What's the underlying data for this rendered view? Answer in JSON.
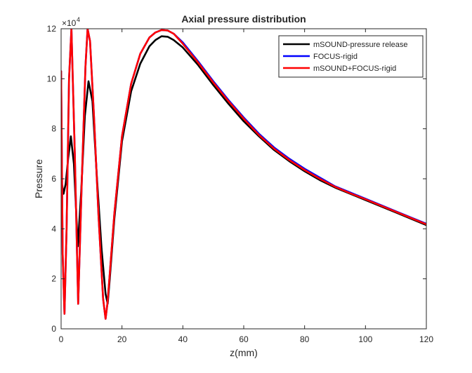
{
  "chart_data": {
    "type": "line",
    "title": "Axial pressure distribution",
    "xlabel": "z(mm)",
    "ylabel": "Pressure",
    "y_exponent_label": "×10",
    "y_exponent_power": "4",
    "xlim": [
      0,
      120
    ],
    "ylim": [
      0,
      120000
    ],
    "x_ticks": [
      0,
      20,
      40,
      60,
      80,
      100,
      120
    ],
    "x_tick_labels": [
      "0",
      "20",
      "40",
      "60",
      "80",
      "100",
      "120"
    ],
    "y_ticks": [
      0,
      20000,
      40000,
      60000,
      80000,
      100000,
      120000
    ],
    "y_tick_labels": [
      "0",
      "2",
      "4",
      "6",
      "8",
      "10",
      "12"
    ],
    "grid": false,
    "legend_position": "top-right",
    "series": [
      {
        "name": "mSOUND-pressure release",
        "color": "#000000",
        "x": [
          0,
          0.8,
          1.5,
          2.3,
          3.2,
          4.2,
          5.5,
          6.6,
          7.8,
          9.0,
          10.3,
          11.8,
          13.3,
          14.6,
          15.3,
          16.0,
          17.5,
          20,
          23,
          26,
          29,
          31,
          33,
          35,
          37,
          40,
          45,
          50,
          55,
          60,
          65,
          70,
          75,
          80,
          85,
          90,
          95,
          100,
          105,
          110,
          115,
          120
        ],
        "y": [
          60000,
          54000,
          58000,
          68000,
          77000,
          66000,
          33000,
          55000,
          85000,
          99000,
          91000,
          60000,
          32000,
          14000,
          10000,
          20000,
          44000,
          75000,
          95000,
          106000,
          113000,
          115500,
          117000,
          116800,
          115500,
          112500,
          105500,
          97500,
          90000,
          83000,
          77000,
          71500,
          67000,
          63000,
          59500,
          56500,
          54000,
          51500,
          49000,
          46500,
          44000,
          41500
        ]
      },
      {
        "name": "FOCUS-rigid",
        "color": "#0000ff",
        "x": [
          0,
          0.5,
          1.1,
          1.8,
          2.6,
          3.4,
          4.5,
          5.6,
          6.7,
          8.0,
          8.7,
          9.5,
          10.8,
          12.3,
          13.8,
          14.6,
          15.2,
          16.0,
          17.5,
          20,
          23,
          26,
          29,
          31,
          33,
          35,
          37,
          40,
          45,
          50,
          55,
          60,
          65,
          70,
          75,
          80,
          85,
          90,
          95,
          100,
          105,
          110,
          115,
          120
        ],
        "y": [
          103000,
          30000,
          6000,
          40000,
          100000,
          120000,
          70000,
          10000,
          55000,
          105000,
          120000,
          115000,
          85000,
          45000,
          12000,
          4000,
          10000,
          22000,
          46000,
          77000,
          98000,
          110000,
          116500,
          118500,
          119500,
          119300,
          118000,
          114500,
          107000,
          99000,
          91500,
          84500,
          78000,
          72500,
          68000,
          64000,
          60500,
          57000,
          54500,
          52000,
          49500,
          47000,
          44500,
          42000
        ]
      },
      {
        "name": "mSOUND+FOCUS-rigid",
        "color": "#ff0000",
        "x": [
          0,
          0.5,
          1.1,
          1.8,
          2.6,
          3.4,
          4.5,
          5.6,
          6.7,
          8.0,
          8.7,
          9.5,
          10.8,
          12.3,
          13.8,
          14.6,
          15.2,
          16.0,
          17.5,
          20,
          23,
          26,
          29,
          31,
          33,
          35,
          37,
          40,
          45,
          50,
          55,
          60,
          65,
          70,
          75,
          80,
          85,
          90,
          95,
          100,
          105,
          110,
          115,
          120
        ],
        "y": [
          103000,
          30000,
          6000,
          40000,
          100000,
          120000,
          70000,
          10000,
          55000,
          105000,
          120000,
          115000,
          85000,
          45000,
          12000,
          4000,
          10000,
          22000,
          46000,
          77000,
          98000,
          110000,
          116500,
          118500,
          119500,
          119300,
          118000,
          114000,
          106500,
          98500,
          91000,
          84000,
          77500,
          72000,
          67500,
          63500,
          60000,
          56800,
          54200,
          51800,
          49300,
          46800,
          44300,
          41800
        ]
      }
    ]
  }
}
